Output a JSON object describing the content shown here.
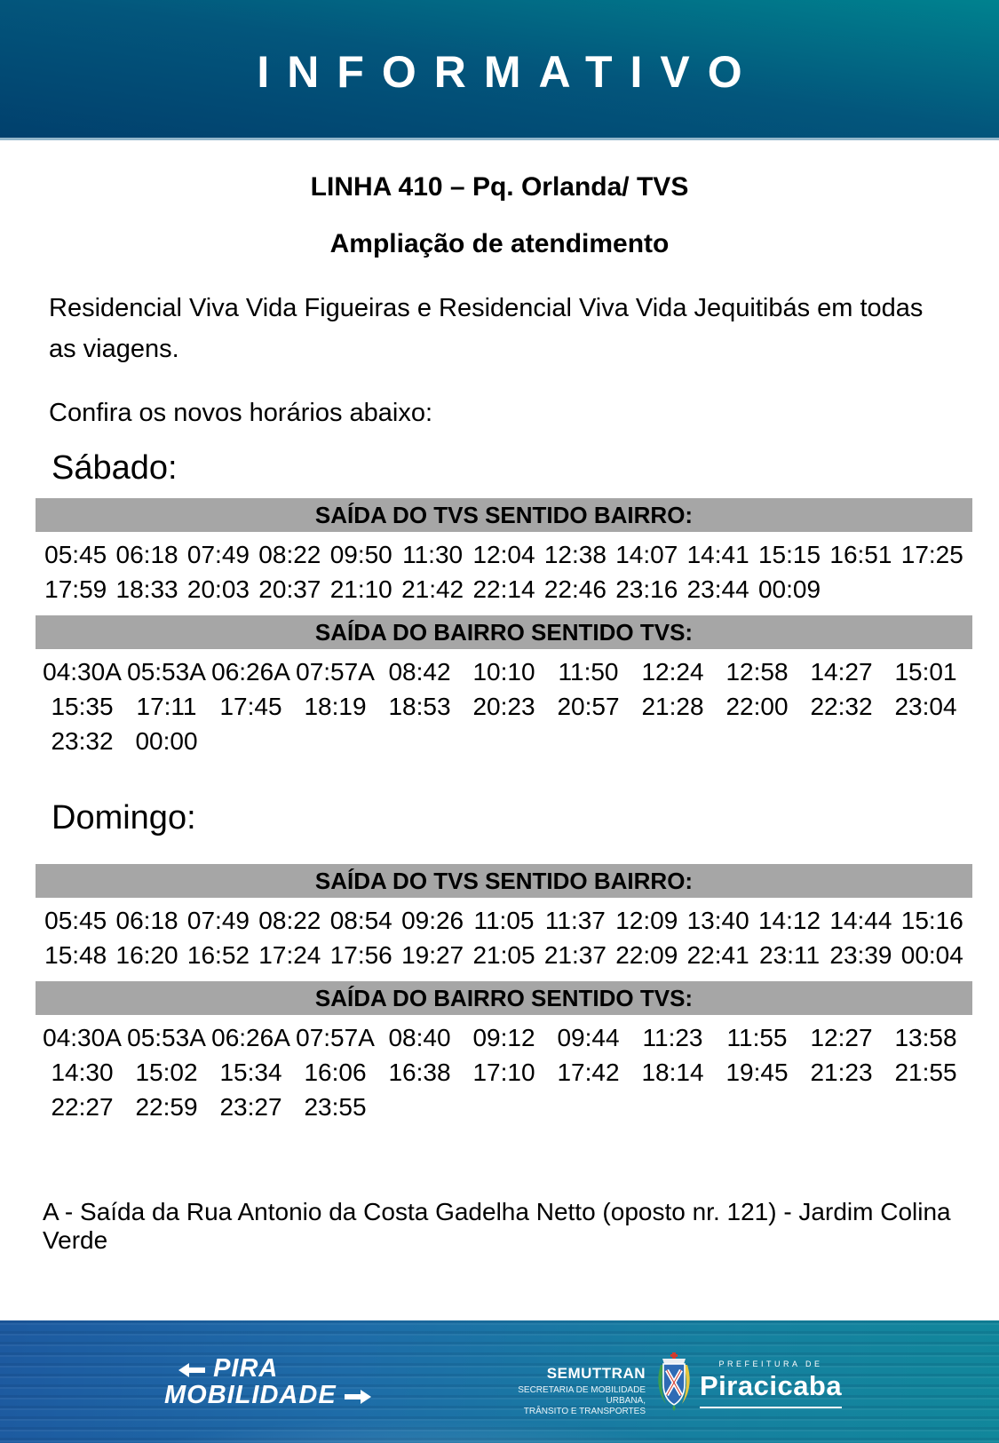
{
  "banner": {
    "title": "INFORMATIVO"
  },
  "notice": {
    "line_title": "LINHA 410 – Pq. Orlanda/ TVS",
    "subtitle": "Ampliação de atendimento",
    "description": "Residencial Viva Vida Figueiras e Residencial Viva Vida Jequitibás em todas as viagens.",
    "cta": "Confira os novos horários abaixo:",
    "footnote": "A - Saída da Rua Antonio da Costa Gadelha Netto (oposto nr. 121) - Jardim Colina Verde"
  },
  "sections": [
    {
      "day": "Sábado:",
      "tables": [
        {
          "header": "SAÍDA DO TVS SENTIDO BAIRRO:",
          "columns": 13,
          "times": [
            "05:45",
            "06:18",
            "07:49",
            "08:22",
            "09:50",
            "11:30",
            "12:04",
            "12:38",
            "14:07",
            "14:41",
            "15:15",
            "16:51",
            "17:25",
            "17:59",
            "18:33",
            "20:03",
            "20:37",
            "21:10",
            "21:42",
            "22:14",
            "22:46",
            "23:16",
            "23:44",
            "00:09"
          ]
        },
        {
          "header": "SAÍDA DO BAIRRO SENTIDO TVS:",
          "columns": 11,
          "times": [
            "04:30A",
            "05:53A",
            "06:26A",
            "07:57A",
            "08:42",
            "10:10",
            "11:50",
            "12:24",
            "12:58",
            "14:27",
            "15:01",
            "15:35",
            "17:11",
            "17:45",
            "18:19",
            "18:53",
            "20:23",
            "20:57",
            "21:28",
            "22:00",
            "22:32",
            "23:04",
            "23:32",
            "00:00"
          ]
        }
      ]
    },
    {
      "day": "Domingo:",
      "tables": [
        {
          "header": "SAÍDA DO TVS SENTIDO BAIRRO:",
          "columns": 13,
          "times": [
            "05:45",
            "06:18",
            "07:49",
            "08:22",
            "08:54",
            "09:26",
            "11:05",
            "11:37",
            "12:09",
            "13:40",
            "14:12",
            "14:44",
            "15:16",
            "15:48",
            "16:20",
            "16:52",
            "17:24",
            "17:56",
            "19:27",
            "21:05",
            "21:37",
            "22:09",
            "22:41",
            "23:11",
            "23:39",
            "00:04"
          ]
        },
        {
          "header": "SAÍDA DO BAIRRO SENTIDO TVS:",
          "columns": 11,
          "times": [
            "04:30A",
            "05:53A",
            "06:26A",
            "07:57A",
            "08:40",
            "09:12",
            "09:44",
            "11:23",
            "11:55",
            "12:27",
            "13:58",
            "14:30",
            "15:02",
            "15:34",
            "16:06",
            "16:38",
            "17:10",
            "17:42",
            "18:14",
            "19:45",
            "21:23",
            "21:55",
            "22:27",
            "22:59",
            "23:27",
            "23:55"
          ]
        }
      ]
    }
  ],
  "footer": {
    "brand_line1": "PIRA",
    "brand_line2": "MOBILIDADE",
    "org_name": "SEMUTTRAN",
    "org_sub1": "SECRETARIA DE MOBILIDADE URBANA,",
    "org_sub2": "TRÂNSITO E TRANSPORTES",
    "city_label": "PREFEITURA DE",
    "city_name": "Piracicaba"
  },
  "colors": {
    "banner-teal": "#00828f",
    "banner-navy": "#01406d",
    "banner-border": "#94b7cb",
    "bar-gray": "#a6a6a6",
    "footer-blue": "#1d5aa0",
    "footer-teal": "#11879b",
    "text-black": "#000000"
  }
}
